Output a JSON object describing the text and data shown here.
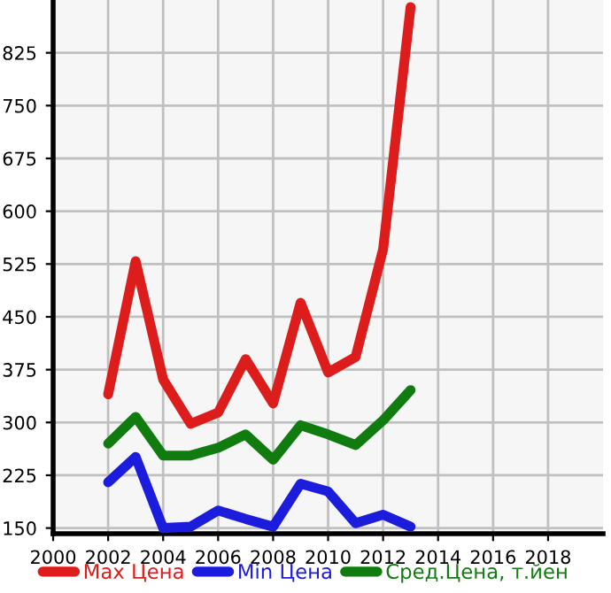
{
  "chart_data": {
    "type": "line",
    "x": [
      2002,
      2003,
      2004,
      2005,
      2006,
      2007,
      2008,
      2009,
      2010,
      2011,
      2012,
      2013
    ],
    "series": [
      {
        "name": "Max Цена",
        "color": "#dd1c1c",
        "values": [
          340,
          529,
          361,
          298,
          314,
          390,
          327,
          470,
          371,
          393,
          546,
          890
        ]
      },
      {
        "name": "Min Цена",
        "color": "#1c1cdd",
        "values": [
          215,
          251,
          150,
          152,
          175,
          163,
          152,
          213,
          202,
          157,
          169,
          152
        ]
      },
      {
        "name": "Сред.Цена, т.йен",
        "color": "#107c10",
        "values": [
          270,
          308,
          253,
          253,
          264,
          283,
          247,
          296,
          283,
          268,
          303,
          346
        ]
      }
    ],
    "xlim": [
      2000,
      2020
    ],
    "xticks": [
      2000,
      2002,
      2004,
      2006,
      2008,
      2010,
      2012,
      2014,
      2016,
      2018
    ],
    "ylim": [
      142,
      900
    ],
    "yticks": [
      150,
      225,
      300,
      375,
      450,
      525,
      600,
      675,
      750,
      825
    ],
    "grid": true,
    "legend": "bottom",
    "marker": "none",
    "line_style": "solid"
  }
}
